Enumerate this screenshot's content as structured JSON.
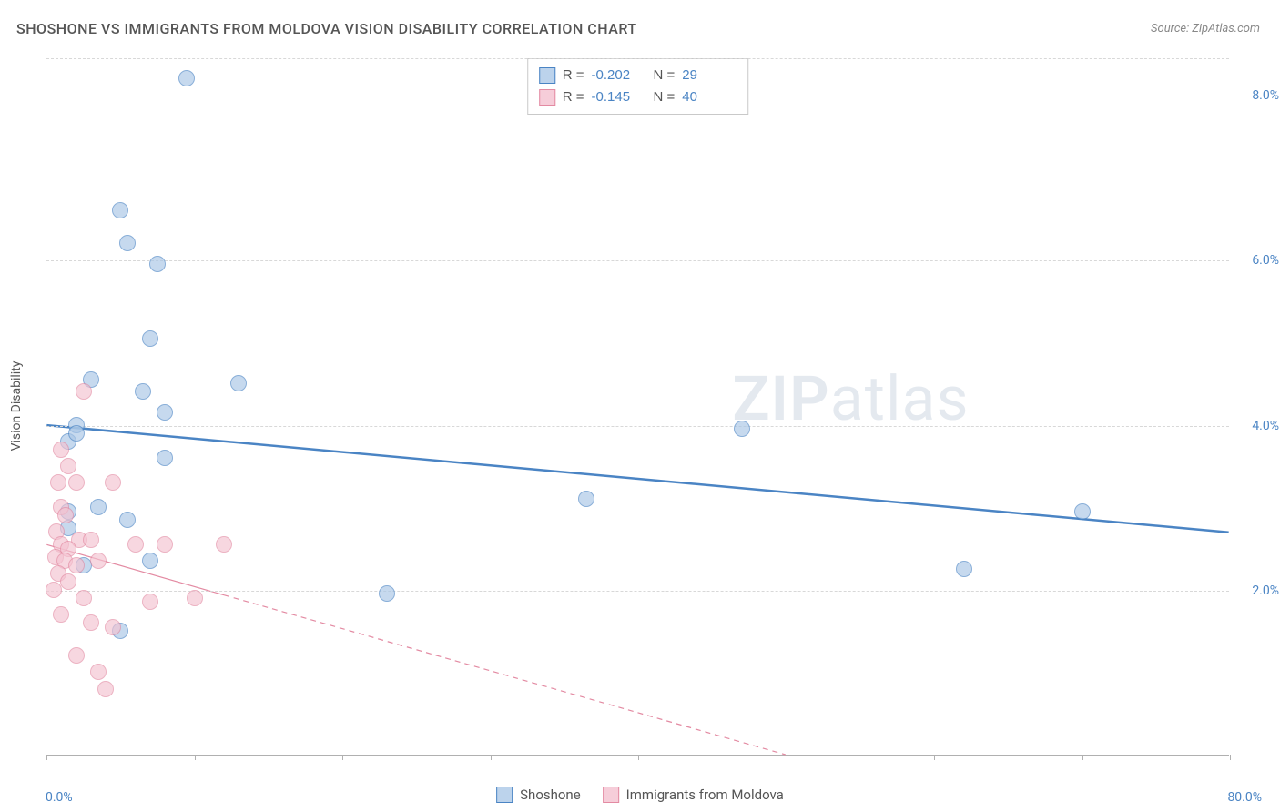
{
  "header": {
    "title": "SHOSHONE VS IMMIGRANTS FROM MOLDOVA VISION DISABILITY CORRELATION CHART",
    "source": "Source: ZipAtlas.com"
  },
  "watermark": {
    "zip": "ZIP",
    "atlas": "atlas"
  },
  "chart": {
    "type": "scatter",
    "ylabel": "Vision Disability",
    "background_color": "#ffffff",
    "grid_color": "#d8d8d8",
    "axis_color": "#b0b0b0",
    "tick_label_color": "#4a84c4",
    "xlim": [
      0,
      80
    ],
    "ylim": [
      0,
      8.5
    ],
    "xticks": [
      0,
      10,
      20,
      30,
      40,
      50,
      60,
      70,
      80
    ],
    "yticks": [
      2.0,
      4.0,
      6.0,
      8.0
    ],
    "ytick_labels": [
      "2.0%",
      "4.0%",
      "6.0%",
      "8.0%"
    ],
    "xlabel_min": "0.0%",
    "xlabel_max": "80.0%",
    "point_radius": 9,
    "point_fill_opacity": 0.35,
    "point_stroke_width": 1.5,
    "series": [
      {
        "name": "Shoshone",
        "color_stroke": "#4a84c4",
        "color_fill": "#a9c6e6",
        "swatch_fill": "#bcd3ec",
        "swatch_border": "#4a84c4",
        "R": "-0.202",
        "N": "29",
        "regression": {
          "x1": 0,
          "y1": 4.0,
          "x2": 80,
          "y2": 2.7,
          "dash": false,
          "width": 2.5
        },
        "points": [
          [
            9.5,
            8.2
          ],
          [
            5.0,
            6.6
          ],
          [
            5.5,
            6.2
          ],
          [
            7.5,
            5.95
          ],
          [
            7.0,
            5.05
          ],
          [
            3.0,
            4.55
          ],
          [
            6.5,
            4.4
          ],
          [
            13.0,
            4.5
          ],
          [
            2.0,
            4.0
          ],
          [
            8.0,
            4.15
          ],
          [
            1.5,
            3.8
          ],
          [
            2.0,
            3.9
          ],
          [
            8.0,
            3.6
          ],
          [
            1.5,
            2.95
          ],
          [
            3.5,
            3.0
          ],
          [
            5.5,
            2.85
          ],
          [
            7.0,
            2.35
          ],
          [
            1.5,
            2.75
          ],
          [
            2.5,
            2.3
          ],
          [
            5.0,
            1.5
          ],
          [
            23.0,
            1.95
          ],
          [
            36.5,
            3.1
          ],
          [
            47.0,
            3.95
          ],
          [
            62.0,
            2.25
          ],
          [
            70.0,
            2.95
          ]
        ]
      },
      {
        "name": "Immigrants from Moldova",
        "color_stroke": "#e38aa2",
        "color_fill": "#f4c3d1",
        "swatch_fill": "#f6cdd9",
        "swatch_border": "#e38aa2",
        "R": "-0.145",
        "N": "40",
        "regression": {
          "x1": 0,
          "y1": 2.55,
          "x2": 50,
          "y2": 0.0,
          "dash": true,
          "width": 1.2,
          "solid_until_x": 12
        },
        "points": [
          [
            2.5,
            4.4
          ],
          [
            1.0,
            3.7
          ],
          [
            1.5,
            3.5
          ],
          [
            0.8,
            3.3
          ],
          [
            2.0,
            3.3
          ],
          [
            4.5,
            3.3
          ],
          [
            1.0,
            3.0
          ],
          [
            1.3,
            2.9
          ],
          [
            2.2,
            2.6
          ],
          [
            0.7,
            2.7
          ],
          [
            1.0,
            2.55
          ],
          [
            1.5,
            2.5
          ],
          [
            3.0,
            2.6
          ],
          [
            6.0,
            2.55
          ],
          [
            0.6,
            2.4
          ],
          [
            1.2,
            2.35
          ],
          [
            2.0,
            2.3
          ],
          [
            3.5,
            2.35
          ],
          [
            8.0,
            2.55
          ],
          [
            12.0,
            2.55
          ],
          [
            0.8,
            2.2
          ],
          [
            1.5,
            2.1
          ],
          [
            0.5,
            2.0
          ],
          [
            2.5,
            1.9
          ],
          [
            7.0,
            1.85
          ],
          [
            10.0,
            1.9
          ],
          [
            1.0,
            1.7
          ],
          [
            3.0,
            1.6
          ],
          [
            4.5,
            1.55
          ],
          [
            2.0,
            1.2
          ],
          [
            3.5,
            1.0
          ],
          [
            4.0,
            0.8
          ]
        ]
      }
    ],
    "stat_legend_labels": {
      "R": "R =",
      "N": "N ="
    },
    "bottom_legend_order": [
      0,
      1
    ]
  }
}
